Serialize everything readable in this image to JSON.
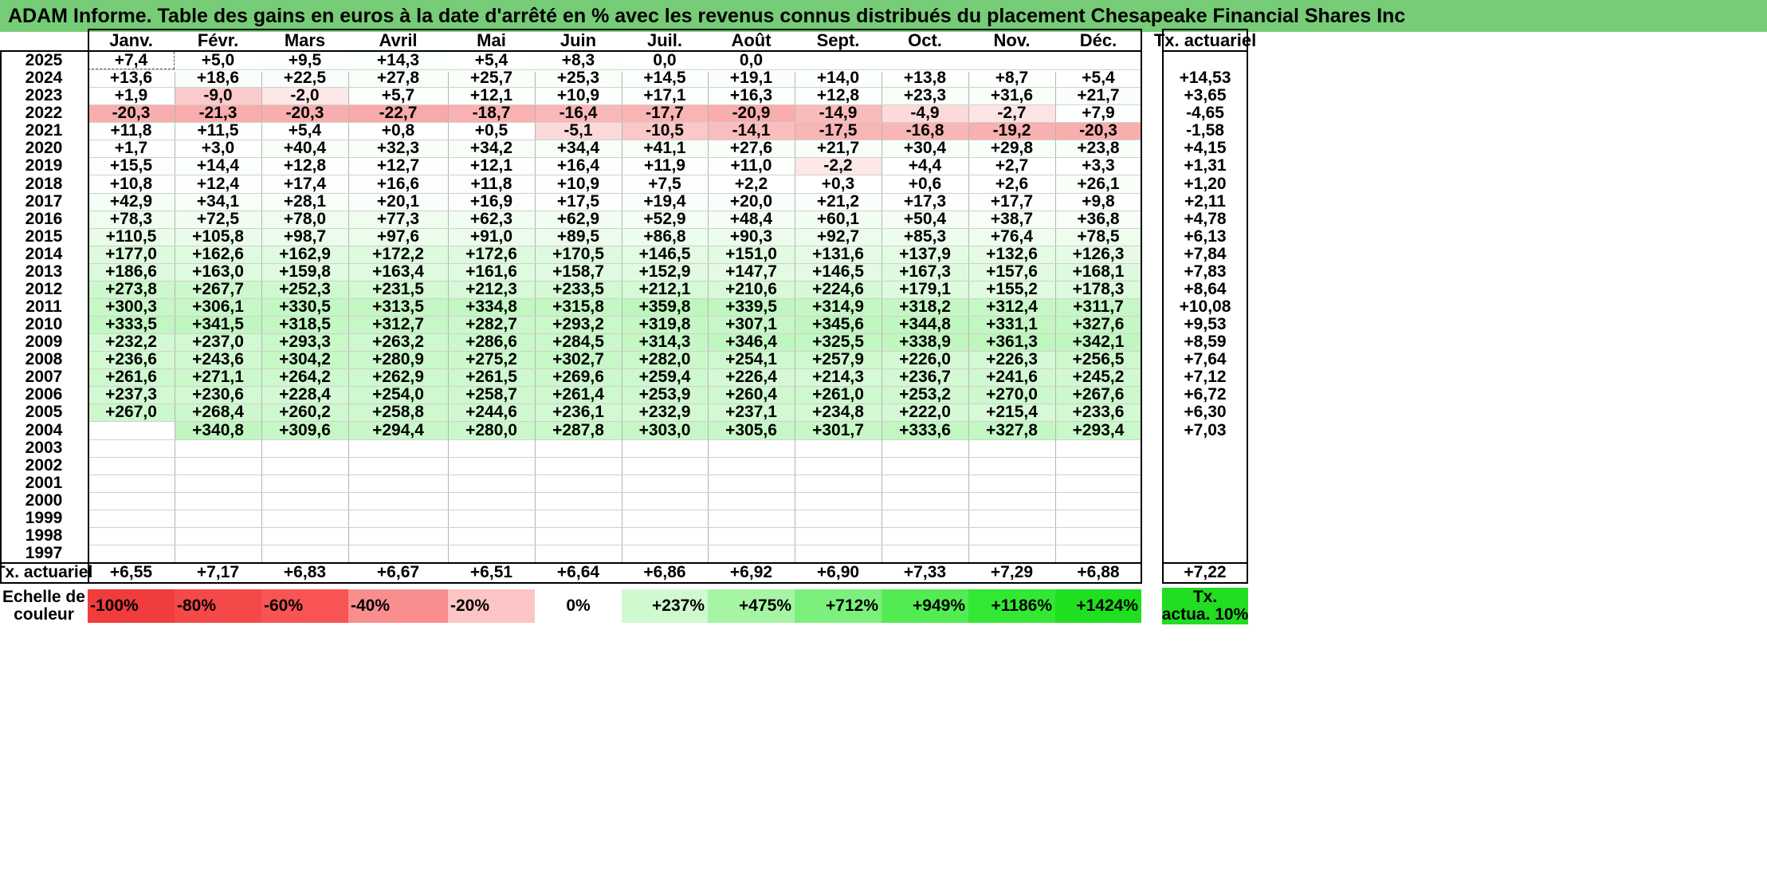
{
  "title": "ADAM Informe. Table des gains en euros à la date d'arrêté en % avec les revenus connus distribués du placement Chesapeake Financial Shares Inc",
  "chart_data": {
    "type": "table",
    "columns": [
      "Janv.",
      "Févr.",
      "Mars",
      "Avril",
      "Mai",
      "Juin",
      "Juil.",
      "Août",
      "Sept.",
      "Oct.",
      "Nov.",
      "Déc."
    ],
    "annual_header": "Tx. actuariel",
    "rows": [
      {
        "year": "2025",
        "values": [
          "+7,4",
          "+5,0",
          "+9,5",
          "+14,3",
          "+5,4",
          "+8,3",
          "0,0",
          "0,0",
          "",
          "",
          "",
          ""
        ],
        "annual": ""
      },
      {
        "year": "2024",
        "values": [
          "+13,6",
          "+18,6",
          "+22,5",
          "+27,8",
          "+25,7",
          "+25,3",
          "+14,5",
          "+19,1",
          "+14,0",
          "+13,8",
          "+8,7",
          "+5,4"
        ],
        "annual": "+14,53"
      },
      {
        "year": "2023",
        "values": [
          "+1,9",
          "-9,0",
          "-2,0",
          "+5,7",
          "+12,1",
          "+10,9",
          "+17,1",
          "+16,3",
          "+12,8",
          "+23,3",
          "+31,6",
          "+21,7"
        ],
        "annual": "+3,65"
      },
      {
        "year": "2022",
        "values": [
          "-20,3",
          "-21,3",
          "-20,3",
          "-22,7",
          "-18,7",
          "-16,4",
          "-17,7",
          "-20,9",
          "-14,9",
          "-4,9",
          "-2,7",
          "+7,9"
        ],
        "annual": "-4,65"
      },
      {
        "year": "2021",
        "values": [
          "+11,8",
          "+11,5",
          "+5,4",
          "+0,8",
          "+0,5",
          "-5,1",
          "-10,5",
          "-14,1",
          "-17,5",
          "-16,8",
          "-19,2",
          "-20,3"
        ],
        "annual": "-1,58"
      },
      {
        "year": "2020",
        "values": [
          "+1,7",
          "+3,0",
          "+40,4",
          "+32,3",
          "+34,2",
          "+34,4",
          "+41,1",
          "+27,6",
          "+21,7",
          "+30,4",
          "+29,8",
          "+23,8"
        ],
        "annual": "+4,15"
      },
      {
        "year": "2019",
        "values": [
          "+15,5",
          "+14,4",
          "+12,8",
          "+12,7",
          "+12,1",
          "+16,4",
          "+11,9",
          "+11,0",
          "-2,2",
          "+4,4",
          "+2,7",
          "+3,3"
        ],
        "annual": "+1,31"
      },
      {
        "year": "2018",
        "values": [
          "+10,8",
          "+12,4",
          "+17,4",
          "+16,6",
          "+11,8",
          "+10,9",
          "+7,5",
          "+2,2",
          "+0,3",
          "+0,6",
          "+2,6",
          "+26,1"
        ],
        "annual": "+1,20"
      },
      {
        "year": "2017",
        "values": [
          "+42,9",
          "+34,1",
          "+28,1",
          "+20,1",
          "+16,9",
          "+17,5",
          "+19,4",
          "+20,0",
          "+21,2",
          "+17,3",
          "+17,7",
          "+9,8"
        ],
        "annual": "+2,11"
      },
      {
        "year": "2016",
        "values": [
          "+78,3",
          "+72,5",
          "+78,0",
          "+77,3",
          "+62,3",
          "+62,9",
          "+52,9",
          "+48,4",
          "+60,1",
          "+50,4",
          "+38,7",
          "+36,8"
        ],
        "annual": "+4,78"
      },
      {
        "year": "2015",
        "values": [
          "+110,5",
          "+105,8",
          "+98,7",
          "+97,6",
          "+91,0",
          "+89,5",
          "+86,8",
          "+90,3",
          "+92,7",
          "+85,3",
          "+76,4",
          "+78,5"
        ],
        "annual": "+6,13"
      },
      {
        "year": "2014",
        "values": [
          "+177,0",
          "+162,6",
          "+162,9",
          "+172,2",
          "+172,6",
          "+170,5",
          "+146,5",
          "+151,0",
          "+131,6",
          "+137,9",
          "+132,6",
          "+126,3"
        ],
        "annual": "+7,84"
      },
      {
        "year": "2013",
        "values": [
          "+186,6",
          "+163,0",
          "+159,8",
          "+163,4",
          "+161,6",
          "+158,7",
          "+152,9",
          "+147,7",
          "+146,5",
          "+167,3",
          "+157,6",
          "+168,1"
        ],
        "annual": "+7,83"
      },
      {
        "year": "2012",
        "values": [
          "+273,8",
          "+267,7",
          "+252,3",
          "+231,5",
          "+212,3",
          "+233,5",
          "+212,1",
          "+210,6",
          "+224,6",
          "+179,1",
          "+155,2",
          "+178,3"
        ],
        "annual": "+8,64"
      },
      {
        "year": "2011",
        "values": [
          "+300,3",
          "+306,1",
          "+330,5",
          "+313,5",
          "+334,8",
          "+315,8",
          "+359,8",
          "+339,5",
          "+314,9",
          "+318,2",
          "+312,4",
          "+311,7"
        ],
        "annual": "+10,08"
      },
      {
        "year": "2010",
        "values": [
          "+333,5",
          "+341,5",
          "+318,5",
          "+312,7",
          "+282,7",
          "+293,2",
          "+319,8",
          "+307,1",
          "+345,6",
          "+344,8",
          "+331,1",
          "+327,6"
        ],
        "annual": "+9,53"
      },
      {
        "year": "2009",
        "values": [
          "+232,2",
          "+237,0",
          "+293,3",
          "+263,2",
          "+286,6",
          "+284,5",
          "+314,3",
          "+346,4",
          "+325,5",
          "+338,9",
          "+361,3",
          "+342,1"
        ],
        "annual": "+8,59"
      },
      {
        "year": "2008",
        "values": [
          "+236,6",
          "+243,6",
          "+304,2",
          "+280,9",
          "+275,2",
          "+302,7",
          "+282,0",
          "+254,1",
          "+257,9",
          "+226,0",
          "+226,3",
          "+256,5"
        ],
        "annual": "+7,64"
      },
      {
        "year": "2007",
        "values": [
          "+261,6",
          "+271,1",
          "+264,2",
          "+262,9",
          "+261,5",
          "+269,6",
          "+259,4",
          "+226,4",
          "+214,3",
          "+236,7",
          "+241,6",
          "+245,2"
        ],
        "annual": "+7,12"
      },
      {
        "year": "2006",
        "values": [
          "+237,3",
          "+230,6",
          "+228,4",
          "+254,0",
          "+258,7",
          "+261,4",
          "+253,9",
          "+260,4",
          "+261,0",
          "+253,2",
          "+270,0",
          "+267,6"
        ],
        "annual": "+6,72"
      },
      {
        "year": "2005",
        "values": [
          "+267,0",
          "+268,4",
          "+260,2",
          "+258,8",
          "+244,6",
          "+236,1",
          "+232,9",
          "+237,1",
          "+234,8",
          "+222,0",
          "+215,4",
          "+233,6"
        ],
        "annual": "+6,30"
      },
      {
        "year": "2004",
        "values": [
          "",
          "+340,8",
          "+309,6",
          "+294,4",
          "+280,0",
          "+287,8",
          "+303,0",
          "+305,6",
          "+301,7",
          "+333,6",
          "+327,8",
          "+293,4"
        ],
        "annual": "+7,03"
      },
      {
        "year": "2003",
        "values": [
          "",
          "",
          "",
          "",
          "",
          "",
          "",
          "",
          "",
          "",
          "",
          ""
        ],
        "annual": ""
      },
      {
        "year": "2002",
        "values": [
          "",
          "",
          "",
          "",
          "",
          "",
          "",
          "",
          "",
          "",
          "",
          ""
        ],
        "annual": ""
      },
      {
        "year": "2001",
        "values": [
          "",
          "",
          "",
          "",
          "",
          "",
          "",
          "",
          "",
          "",
          "",
          ""
        ],
        "annual": ""
      },
      {
        "year": "2000",
        "values": [
          "",
          "",
          "",
          "",
          "",
          "",
          "",
          "",
          "",
          "",
          "",
          ""
        ],
        "annual": ""
      },
      {
        "year": "1999",
        "values": [
          "",
          "",
          "",
          "",
          "",
          "",
          "",
          "",
          "",
          "",
          "",
          ""
        ],
        "annual": ""
      },
      {
        "year": "1998",
        "values": [
          "",
          "",
          "",
          "",
          "",
          "",
          "",
          "",
          "",
          "",
          "",
          ""
        ],
        "annual": ""
      },
      {
        "year": "1997",
        "values": [
          "",
          "",
          "",
          "",
          "",
          "",
          "",
          "",
          "",
          "",
          "",
          ""
        ],
        "annual": ""
      }
    ],
    "footer": {
      "label": "Tx. actuariel",
      "values": [
        "+6,55",
        "+7,17",
        "+6,83",
        "+6,67",
        "+6,51",
        "+6,64",
        "+6,86",
        "+6,92",
        "+6,90",
        "+7,33",
        "+7,29",
        "+6,88"
      ],
      "annual": "+7,22"
    },
    "legend": {
      "label_line1": "Echelle de",
      "label_line2": "couleur",
      "items": [
        "-100%",
        "-80%",
        "-60%",
        "-40%",
        "-20%",
        "0%",
        "+237%",
        "+475%",
        "+712%",
        "+949%",
        "+1186%",
        "+1424%"
      ],
      "colors": [
        "#f03c3c",
        "#f54848",
        "#f85454",
        "#fa8e8e",
        "#fcc4c4",
        "#ffffff",
        "#cff9cf",
        "#a5f5a5",
        "#7cf07c",
        "#52ec52",
        "#33e833",
        "#1ee01e"
      ],
      "annual_line1": "Tx.",
      "annual_line2": "actua. 10%",
      "annual_color": "#22dd22"
    },
    "color_scale": {
      "negative": "#f03c3c",
      "zero": "#ffffff",
      "positive": "#1ee01e",
      "neg_full_at": -100,
      "pos_full_at": 1424
    }
  }
}
